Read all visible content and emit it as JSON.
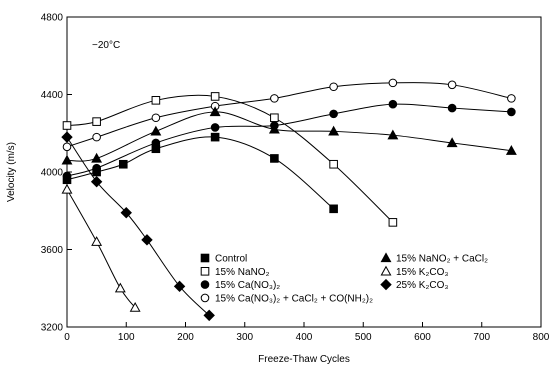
{
  "chart_data": {
    "type": "line",
    "annotation": "−20°C",
    "xlabel": "Freeze-Thaw Cycles",
    "ylabel": "Velocity (m/s)",
    "xlim": [
      0,
      800
    ],
    "ylim": [
      3200,
      4800
    ],
    "x_ticks": [
      0,
      100,
      200,
      300,
      400,
      500,
      600,
      700,
      800
    ],
    "y_ticks": [
      3200,
      3600,
      4000,
      4400,
      4800
    ],
    "grid": false,
    "legend_position": "bottom-center",
    "series": [
      {
        "name": "Control",
        "marker": "square-filled",
        "points": [
          [
            0,
            3960
          ],
          [
            50,
            4000
          ],
          [
            95,
            4040
          ],
          [
            150,
            4120
          ],
          [
            250,
            4180
          ],
          [
            350,
            4070
          ],
          [
            450,
            3810
          ]
        ]
      },
      {
        "name": "15% NaNO₂",
        "marker": "square-open",
        "points": [
          [
            0,
            4240
          ],
          [
            50,
            4260
          ],
          [
            150,
            4370
          ],
          [
            250,
            4390
          ],
          [
            350,
            4280
          ],
          [
            450,
            4040
          ],
          [
            550,
            3740
          ]
        ]
      },
      {
        "name": "15% Ca(NO₃)₂",
        "marker": "circle-filled",
        "points": [
          [
            0,
            3980
          ],
          [
            50,
            4020
          ],
          [
            150,
            4150
          ],
          [
            250,
            4230
          ],
          [
            350,
            4240
          ],
          [
            450,
            4300
          ],
          [
            550,
            4350
          ],
          [
            650,
            4330
          ],
          [
            750,
            4310
          ]
        ]
      },
      {
        "name": "15% Ca(NO₃)₂ + CaCl₂ + CO(NH₂)₂",
        "marker": "circle-open",
        "points": [
          [
            0,
            4130
          ],
          [
            50,
            4180
          ],
          [
            150,
            4280
          ],
          [
            250,
            4340
          ],
          [
            350,
            4380
          ],
          [
            450,
            4440
          ],
          [
            550,
            4460
          ],
          [
            650,
            4450
          ],
          [
            750,
            4380
          ]
        ]
      },
      {
        "name": "15% NaNO₂ + CaCl₂",
        "marker": "triangle-filled",
        "points": [
          [
            0,
            4060
          ],
          [
            50,
            4070
          ],
          [
            150,
            4210
          ],
          [
            250,
            4310
          ],
          [
            350,
            4220
          ],
          [
            450,
            4210
          ],
          [
            550,
            4190
          ],
          [
            650,
            4150
          ],
          [
            750,
            4110
          ]
        ]
      },
      {
        "name": "15% K₂CO₃",
        "marker": "triangle-open",
        "points": [
          [
            0,
            3910
          ],
          [
            50,
            3640
          ],
          [
            90,
            3400
          ],
          [
            115,
            3300
          ]
        ]
      },
      {
        "name": "25% K₂CO₃",
        "marker": "diamond-filled",
        "points": [
          [
            0,
            4180
          ],
          [
            50,
            3950
          ],
          [
            100,
            3790
          ],
          [
            135,
            3650
          ],
          [
            190,
            3410
          ],
          [
            240,
            3260
          ]
        ]
      }
    ],
    "legend_left": [
      {
        "series_index": 0,
        "label": "Control"
      },
      {
        "series_index": 1,
        "label": "15% NaNO₂"
      },
      {
        "series_index": 2,
        "label": "15% Ca(NO₃)₂"
      },
      {
        "series_index": 3,
        "label": "15% Ca(NO₃)₂ + CaCl₂ + CO(NH₂)₂"
      }
    ],
    "legend_right": [
      {
        "series_index": 4,
        "label": "15% NaNO₂ + CaCl₂"
      },
      {
        "series_index": 5,
        "label": "15% K₂CO₃"
      },
      {
        "series_index": 6,
        "label": "25% K₂CO₃"
      }
    ]
  }
}
